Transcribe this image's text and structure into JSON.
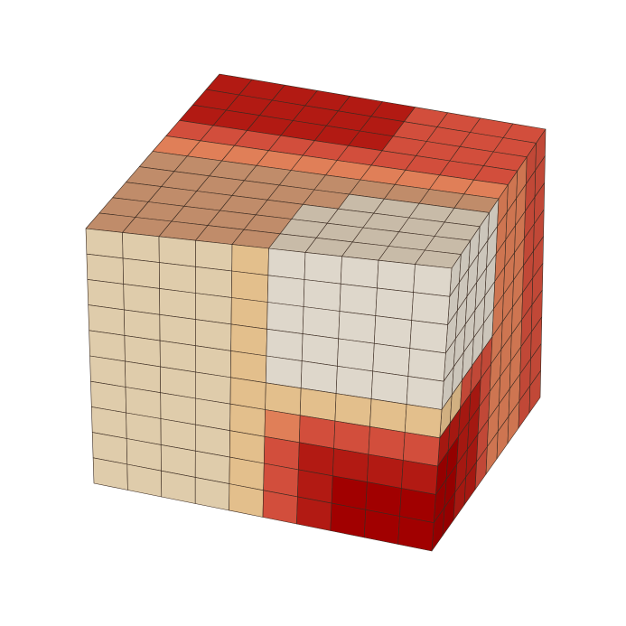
{
  "figure": {
    "type": "3d voxel cube",
    "grid": {
      "columns": 10,
      "rows": 10,
      "depth": 10
    },
    "background": "#ffffff",
    "edge_color": "#3a2a20",
    "colormap": [
      "#dfccab",
      "#e3bf8c",
      "#e07f58",
      "#d24e3c",
      "#b21a13",
      "#a10000",
      "#ded7cb",
      "#c8bba8",
      "#c08c6a"
    ],
    "faces": {
      "front": [
        [
          0,
          0,
          0,
          0,
          1,
          6,
          6,
          6,
          6,
          6
        ],
        [
          0,
          0,
          0,
          0,
          1,
          6,
          6,
          6,
          6,
          6
        ],
        [
          0,
          0,
          0,
          0,
          1,
          6,
          6,
          6,
          6,
          6
        ],
        [
          0,
          0,
          0,
          0,
          1,
          6,
          6,
          6,
          6,
          6
        ],
        [
          0,
          0,
          0,
          0,
          1,
          6,
          6,
          6,
          6,
          6
        ],
        [
          0,
          0,
          0,
          0,
          1,
          1,
          1,
          1,
          1,
          1
        ],
        [
          0,
          0,
          0,
          0,
          1,
          2,
          3,
          3,
          3,
          3
        ],
        [
          0,
          0,
          0,
          0,
          1,
          3,
          4,
          4,
          4,
          4
        ],
        [
          0,
          0,
          0,
          0,
          1,
          3,
          4,
          5,
          5,
          5
        ],
        [
          0,
          0,
          0,
          0,
          1,
          3,
          4,
          5,
          5,
          5
        ]
      ],
      "top": [
        [
          4,
          4,
          4,
          4,
          4,
          4,
          3,
          3,
          3,
          3
        ],
        [
          4,
          4,
          4,
          4,
          4,
          4,
          3,
          3,
          3,
          3
        ],
        [
          4,
          4,
          4,
          4,
          4,
          4,
          3,
          3,
          3,
          3
        ],
        [
          3,
          3,
          3,
          3,
          3,
          3,
          3,
          3,
          3,
          3
        ],
        [
          2,
          2,
          2,
          2,
          2,
          2,
          2,
          2,
          2,
          2
        ],
        [
          8,
          8,
          8,
          8,
          8,
          8,
          8,
          8,
          8,
          8
        ],
        [
          8,
          8,
          8,
          8,
          8,
          8,
          7,
          7,
          7,
          7
        ],
        [
          8,
          8,
          8,
          8,
          8,
          7,
          7,
          7,
          7,
          7
        ],
        [
          8,
          8,
          8,
          8,
          8,
          7,
          7,
          7,
          7,
          7
        ],
        [
          8,
          8,
          8,
          8,
          8,
          7,
          7,
          7,
          7,
          7
        ]
      ],
      "right": [
        [
          6,
          6,
          6,
          6,
          6,
          2,
          2,
          2,
          3,
          3
        ],
        [
          6,
          6,
          6,
          6,
          6,
          2,
          2,
          2,
          3,
          3
        ],
        [
          6,
          6,
          6,
          6,
          6,
          2,
          2,
          2,
          3,
          3
        ],
        [
          6,
          6,
          6,
          6,
          6,
          2,
          2,
          2,
          3,
          3
        ],
        [
          6,
          6,
          6,
          6,
          6,
          2,
          2,
          2,
          3,
          3
        ],
        [
          1,
          1,
          3,
          3,
          3,
          2,
          2,
          2,
          3,
          3
        ],
        [
          4,
          4,
          4,
          4,
          3,
          2,
          2,
          2,
          3,
          3
        ],
        [
          5,
          5,
          4,
          4,
          3,
          2,
          2,
          2,
          3,
          3
        ],
        [
          5,
          5,
          4,
          4,
          3,
          2,
          2,
          2,
          3,
          3
        ],
        [
          5,
          5,
          4,
          4,
          3,
          2,
          2,
          2,
          3,
          3
        ]
      ]
    }
  }
}
